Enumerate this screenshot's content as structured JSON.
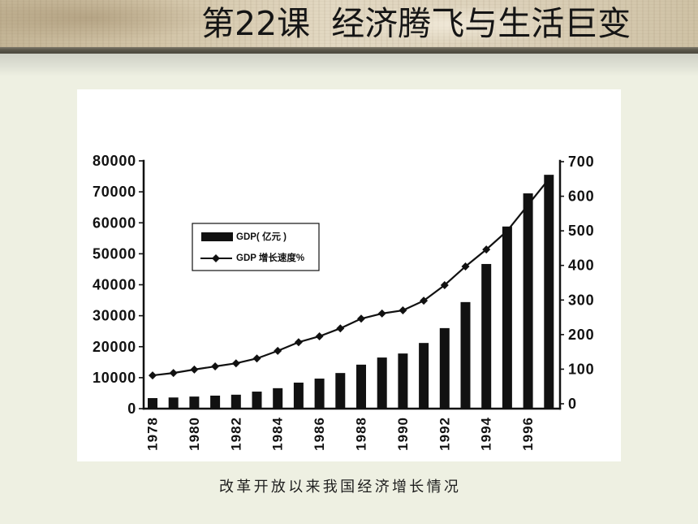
{
  "slide": {
    "title": "第22课  经济腾飞与生活巨变",
    "caption": "改革开放以来我国经济增长情况"
  },
  "colors": {
    "slide_background": "#eef0e2",
    "chart_background": "#ffffff",
    "ink": "#111111"
  },
  "chart_data": {
    "type": "bar",
    "x": [
      1978,
      1979,
      1980,
      1981,
      1982,
      1983,
      1984,
      1985,
      1986,
      1987,
      1988,
      1989,
      1990,
      1991,
      1992,
      1993,
      1994,
      1995,
      1996,
      1997
    ],
    "x_tick_labels": [
      "1978",
      "1980",
      "1982",
      "1984",
      "1986",
      "1988",
      "1990",
      "1992",
      "1994",
      "1996"
    ],
    "series": [
      {
        "name": "GDP( 亿元 )",
        "type": "bar",
        "axis": "left",
        "color": "#111111",
        "values": [
          3400,
          3600,
          3900,
          4200,
          4500,
          5500,
          6600,
          8400,
          9700,
          11500,
          14200,
          16500,
          17800,
          21200,
          26000,
          34400,
          46700,
          58800,
          69500,
          75500
        ]
      },
      {
        "name": "GDP 增长速度%",
        "type": "line",
        "axis": "right",
        "marker": "diamond",
        "color": "#111111",
        "values": [
          82,
          89,
          99,
          108,
          117,
          131,
          153,
          178,
          195,
          218,
          246,
          261,
          270,
          298,
          343,
          397,
          446,
          500,
          575,
          650
        ]
      }
    ],
    "y_left": {
      "range": [
        0,
        80000
      ],
      "ticks": [
        0,
        10000,
        20000,
        30000,
        40000,
        50000,
        60000,
        70000,
        80000
      ]
    },
    "y_right": {
      "range": [
        0,
        700
      ],
      "ticks": [
        0,
        100,
        200,
        300,
        400,
        500,
        600,
        700
      ]
    },
    "legend": "upper-left",
    "grid": false
  }
}
